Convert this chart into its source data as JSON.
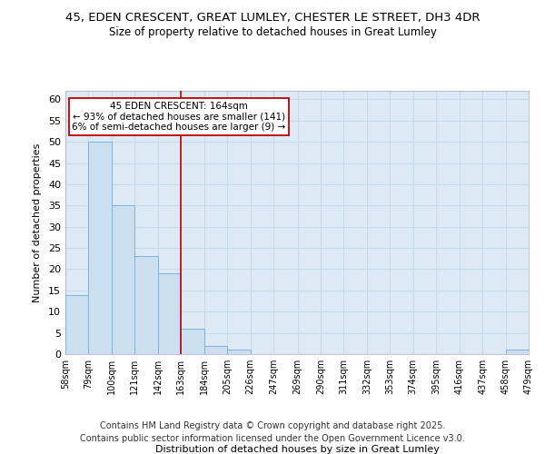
{
  "title_line1": "45, EDEN CRESCENT, GREAT LUMLEY, CHESTER LE STREET, DH3 4DR",
  "title_line2": "Size of property relative to detached houses in Great Lumley",
  "xlabel": "Distribution of detached houses by size in Great Lumley",
  "ylabel": "Number of detached properties",
  "bin_edges": [
    58,
    79,
    100,
    121,
    142,
    163,
    184,
    205,
    226,
    247,
    269,
    290,
    311,
    332,
    353,
    374,
    395,
    416,
    437,
    458,
    479
  ],
  "bar_heights": [
    14,
    50,
    35,
    23,
    19,
    6,
    2,
    1,
    0,
    0,
    0,
    0,
    0,
    0,
    0,
    0,
    0,
    0,
    0,
    1
  ],
  "bar_color": "#ccdff0",
  "bar_edge_color": "#7fb3d8",
  "property_line_x": 163,
  "property_line_color": "#c00000",
  "annotation_text": "45 EDEN CRESCENT: 164sqm\n← 93% of detached houses are smaller (141)\n6% of semi-detached houses are larger (9) →",
  "annotation_box_color": "#c00000",
  "ylim": [
    0,
    62
  ],
  "yticks": [
    0,
    5,
    10,
    15,
    20,
    25,
    30,
    35,
    40,
    45,
    50,
    55,
    60
  ],
  "grid_color": "#c8daea",
  "background_color": "#ddeaf5",
  "footer_line1": "Contains HM Land Registry data © Crown copyright and database right 2025.",
  "footer_line2": "Contains public sector information licensed under the Open Government Licence v3.0.",
  "title_fontsize": 9.5,
  "subtitle_fontsize": 8.5,
  "annotation_fontsize": 7.5,
  "tick_fontsize": 7,
  "axis_label_fontsize": 8,
  "footer_fontsize": 7
}
